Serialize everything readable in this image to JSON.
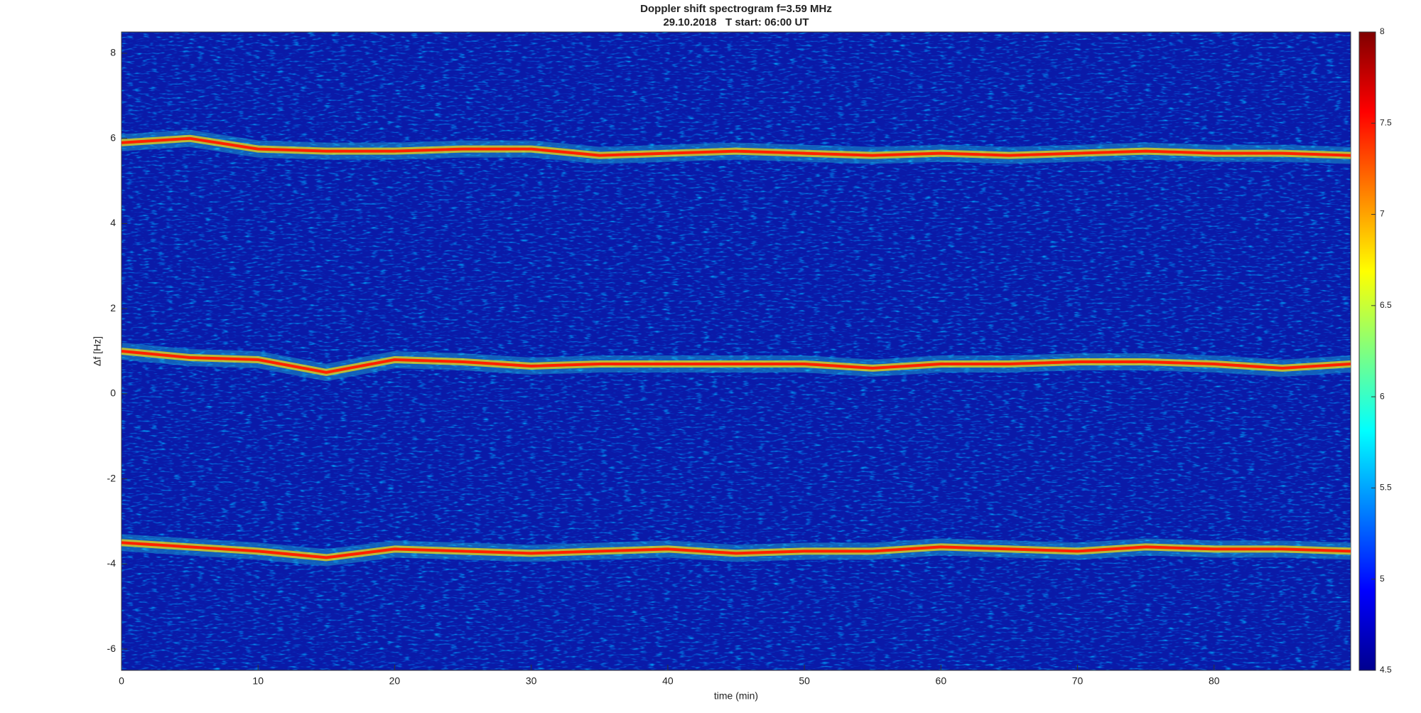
{
  "chart_data": {
    "type": "spectrogram",
    "title": "Doppler shift spectrogram f=3.59 MHz",
    "subtitle": "29.10.2018   T start: 06:00 UT",
    "x_label": "time (min)",
    "y_label": "Δf [Hz]",
    "xlim": [
      0,
      90
    ],
    "xticks": [
      0,
      10,
      20,
      30,
      40,
      50,
      60,
      70,
      80
    ],
    "ylim": [
      -6.5,
      8.5
    ],
    "yticks": [
      -6,
      -4,
      -2,
      0,
      2,
      4,
      6,
      8
    ],
    "x": [
      0,
      5,
      10,
      15,
      20,
      25,
      30,
      35,
      40,
      45,
      50,
      55,
      60,
      65,
      70,
      75,
      80,
      85,
      90
    ],
    "series": [
      {
        "color": "#ff2000",
        "values": [
          5.9,
          6.0,
          5.75,
          5.7,
          5.7,
          5.75,
          5.75,
          5.6,
          5.65,
          5.7,
          5.65,
          5.6,
          5.65,
          5.6,
          5.65,
          5.7,
          5.65,
          5.65,
          5.6
        ]
      },
      {
        "color": "#ff2000",
        "values": [
          1.0,
          0.85,
          0.8,
          0.5,
          0.8,
          0.75,
          0.65,
          0.7,
          0.7,
          0.7,
          0.7,
          0.6,
          0.7,
          0.7,
          0.75,
          0.75,
          0.7,
          0.6,
          0.7
        ]
      },
      {
        "color": "#ff2000",
        "values": [
          -3.5,
          -3.6,
          -3.7,
          -3.85,
          -3.65,
          -3.7,
          -3.75,
          -3.7,
          -3.65,
          -3.75,
          -3.7,
          -3.7,
          -3.6,
          -3.65,
          -3.7,
          -3.6,
          -3.65,
          -3.65,
          -3.7
        ]
      }
    ],
    "colorbar": {
      "lim": [
        4.5,
        8
      ],
      "ticks": [
        4.5,
        5,
        5.5,
        6,
        6.5,
        7,
        7.5,
        8
      ]
    }
  }
}
